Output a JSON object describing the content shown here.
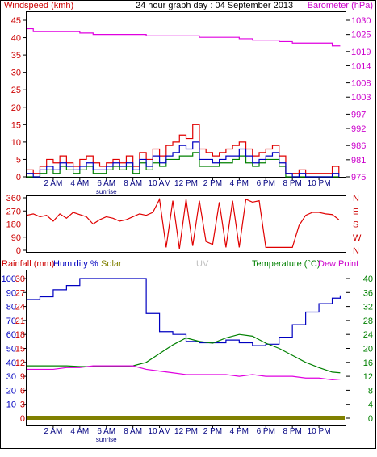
{
  "chart_data": [
    {
      "type": "line",
      "title": "24 hour graph day : 04 September 2013",
      "left_axis_label": "Windspeed (kmh)",
      "right_axis_label": "Barometer (hPa)",
      "left_ticks": [
        "0",
        "5",
        "10",
        "15",
        "20",
        "25",
        "30",
        "35",
        "40",
        "45"
      ],
      "right_ticks": [
        "975",
        "981",
        "986",
        "992",
        "997",
        "1003",
        "1008",
        "1014",
        "1019",
        "1025",
        "1030"
      ],
      "x_ticks": [
        "2 AM",
        "4 AM",
        "6 AM",
        "8 AM",
        "10 AM",
        "12 PM",
        "2 PM",
        "4 PM",
        "6 PM",
        "8 PM",
        "10 PM"
      ],
      "x_annotation": "sunrise",
      "ylim_left": [
        0,
        45
      ],
      "ylim_right": [
        975,
        1030
      ],
      "x_range_hours": [
        0,
        24
      ],
      "colors": {
        "gust": "#e00000",
        "avg": "#0000c0",
        "direction_like": "#008000",
        "barometer": "#e000e0",
        "axis_left": "#cc0000",
        "axis_right": "#cc00cc"
      },
      "series": [
        {
          "color": "#e000e0",
          "x": [
            0,
            0.5,
            1,
            2,
            3,
            4,
            5,
            6,
            7,
            8,
            9,
            10,
            11,
            12,
            13,
            14,
            15,
            16,
            17,
            18,
            19,
            20,
            21,
            22,
            23,
            23.6
          ],
          "values": [
            1027,
            1026,
            1026,
            1026,
            1026,
            1025.5,
            1025,
            1025,
            1025,
            1025,
            1024.5,
            1024.5,
            1024.5,
            1024.5,
            1024,
            1024,
            1024,
            1023.5,
            1023,
            1023,
            1022.5,
            1022,
            1022,
            1022,
            1021,
            1021
          ]
        },
        {
          "color": "#e00000",
          "x": [
            0,
            0.5,
            1,
            1.5,
            2,
            2.5,
            3,
            3.5,
            4,
            4.5,
            5,
            5.5,
            6,
            6.5,
            7,
            7.5,
            8,
            8.5,
            9,
            9.5,
            10,
            10.5,
            11,
            11.5,
            12,
            12.5,
            13,
            13.5,
            14,
            14.5,
            15,
            15.5,
            16,
            16.5,
            17,
            17.5,
            18,
            18.5,
            19,
            19.5,
            20,
            20.5,
            21,
            21.5,
            22,
            22.5,
            23,
            23.5
          ],
          "values": [
            2,
            1,
            3,
            5,
            4,
            6,
            4,
            3,
            5,
            6,
            4,
            3,
            4,
            5,
            4,
            6,
            3,
            7,
            5,
            8,
            6,
            9,
            10,
            12,
            11,
            15,
            8,
            7,
            6,
            7,
            8,
            9,
            10,
            8,
            6,
            7,
            8,
            9,
            6,
            1,
            1,
            2,
            1,
            1,
            1,
            1,
            3,
            1
          ]
        },
        {
          "color": "#0000c0",
          "x": [
            0,
            0.5,
            1,
            1.5,
            2,
            2.5,
            3,
            3.5,
            4,
            4.5,
            5,
            5.5,
            6,
            6.5,
            7,
            7.5,
            8,
            8.5,
            9,
            9.5,
            10,
            10.5,
            11,
            11.5,
            12,
            12.5,
            13,
            13.5,
            14,
            14.5,
            15,
            15.5,
            16,
            16.5,
            17,
            17.5,
            18,
            18.5,
            19,
            19.5,
            20,
            20.5,
            21,
            21.5,
            22,
            22.5,
            23,
            23.5
          ],
          "values": [
            1,
            0,
            2,
            3,
            2,
            4,
            3,
            2,
            3,
            4,
            2,
            2,
            3,
            4,
            3,
            4,
            2,
            5,
            3,
            6,
            4,
            6,
            7,
            9,
            8,
            10,
            5,
            5,
            4,
            5,
            6,
            6,
            8,
            6,
            4,
            5,
            6,
            7,
            4,
            1,
            0,
            1,
            0,
            0,
            0,
            0,
            1,
            0
          ]
        },
        {
          "color": "#008000",
          "x": [
            0,
            0.5,
            1,
            1.5,
            2,
            2.5,
            3,
            3.5,
            4,
            4.5,
            5,
            5.5,
            6,
            6.5,
            7,
            7.5,
            8,
            8.5,
            9,
            9.5,
            10,
            10.5,
            11,
            11.5,
            12,
            12.5,
            13,
            13.5,
            14,
            14.5,
            15,
            15.5,
            16,
            16.5,
            17,
            17.5,
            18,
            18.5,
            19,
            19.5,
            20,
            20.5,
            21,
            21.5,
            22,
            22.5,
            23,
            23.5
          ],
          "values": [
            0,
            0,
            1,
            2,
            1,
            3,
            2,
            1,
            2,
            3,
            1,
            1,
            2,
            3,
            2,
            3,
            1,
            4,
            2,
            4,
            3,
            5,
            5,
            6,
            6,
            7,
            3,
            3,
            3,
            4,
            4,
            5,
            6,
            4,
            3,
            4,
            5,
            5,
            3,
            0,
            0,
            0,
            0,
            0,
            0,
            0,
            0,
            0
          ]
        }
      ]
    },
    {
      "type": "line",
      "left_ticks": [
        "0",
        "90",
        "180",
        "270",
        "360"
      ],
      "right_ticks": [
        "N",
        "W",
        "S",
        "E",
        "N"
      ],
      "ylim": [
        0,
        360
      ],
      "series": [
        {
          "color": "#e00000",
          "x": [
            0,
            0.5,
            1,
            1.5,
            2,
            2.5,
            3,
            3.5,
            4,
            4.5,
            5,
            5.5,
            6,
            6.5,
            7,
            7.5,
            8,
            8.5,
            9,
            9.5,
            10,
            10.5,
            11,
            11.5,
            12,
            12.5,
            13,
            13.5,
            14,
            14.5,
            15,
            15.5,
            16,
            16.5,
            17,
            17.5,
            18,
            18.5,
            19,
            19.5,
            20,
            20.5,
            21,
            21.5,
            22,
            22.5,
            23,
            23.5
          ],
          "values": [
            240,
            250,
            230,
            240,
            200,
            250,
            220,
            260,
            245,
            230,
            180,
            210,
            230,
            220,
            200,
            210,
            230,
            250,
            240,
            260,
            350,
            20,
            340,
            10,
            350,
            30,
            340,
            60,
            40,
            330,
            20,
            340,
            20,
            350,
            330,
            340,
            20,
            20,
            20,
            20,
            20,
            170,
            240,
            260,
            260,
            250,
            245,
            210
          ]
        }
      ]
    },
    {
      "type": "line",
      "legend": [
        "Rainfall (mm)",
        "Humidity %",
        "Solar",
        "UV",
        "Temperature (°C)",
        "Dew Point"
      ],
      "left_ticks_humidity": [
        "10",
        "20",
        "30",
        "40",
        "50",
        "60",
        "70",
        "80",
        "90",
        "100"
      ],
      "left_ticks_rain": [
        "0",
        "3",
        "6",
        "9",
        "12",
        "15",
        "18",
        "21",
        "24",
        "27",
        "30"
      ],
      "right_ticks": [
        "0",
        "4",
        "8",
        "12",
        "16",
        "20",
        "24",
        "28",
        "32",
        "36",
        "40"
      ],
      "x_ticks": [
        "2 AM",
        "4 AM",
        "6 AM",
        "8 AM",
        "10 AM",
        "12 PM",
        "2 PM",
        "4 PM",
        "6 PM",
        "8 PM",
        "10 PM"
      ],
      "x_annotation": "sunrise",
      "ylim_left": [
        0,
        100
      ],
      "ylim_right": [
        0,
        40
      ],
      "series": [
        {
          "color": "#0000c0",
          "x": [
            0,
            1,
            2,
            3,
            4,
            5,
            6,
            7,
            8,
            9,
            10,
            11,
            12,
            13,
            14,
            15,
            16,
            17,
            18,
            19,
            20,
            21,
            22,
            23,
            23.6
          ],
          "values": [
            85,
            87,
            92,
            95,
            100,
            100,
            100,
            100,
            100,
            75,
            62,
            60,
            55,
            54,
            54,
            56,
            54,
            52,
            53,
            58,
            67,
            76,
            82,
            86,
            88
          ]
        },
        {
          "color": "#008000",
          "x": [
            0,
            1,
            2,
            3,
            4,
            5,
            6,
            7,
            8,
            9,
            10,
            11,
            12,
            13,
            14,
            15,
            16,
            17,
            18,
            19,
            20,
            21,
            22,
            23,
            23.6
          ],
          "values": [
            15,
            15,
            15,
            15,
            14.8,
            14.8,
            14.8,
            14.8,
            15,
            16,
            18.5,
            21,
            23,
            22,
            21.5,
            23,
            24,
            23.5,
            21.5,
            20,
            18,
            16,
            14.5,
            13.2,
            13
          ]
        },
        {
          "color": "#e000e0",
          "x": [
            0,
            1,
            2,
            3,
            4,
            5,
            6,
            7,
            8,
            9,
            10,
            11,
            12,
            13,
            14,
            15,
            16,
            17,
            18,
            19,
            20,
            21,
            22,
            23,
            23.6
          ],
          "values": [
            14,
            14,
            14,
            14.5,
            14.5,
            15,
            15,
            15,
            15,
            14,
            13.5,
            13,
            12.5,
            12.5,
            12.5,
            12.5,
            12,
            12.5,
            12,
            12,
            12,
            11.5,
            11.5,
            11,
            11.2
          ]
        },
        {
          "color": "#808000",
          "x": [
            0,
            24
          ],
          "values": [
            0,
            0
          ]
        }
      ]
    }
  ]
}
